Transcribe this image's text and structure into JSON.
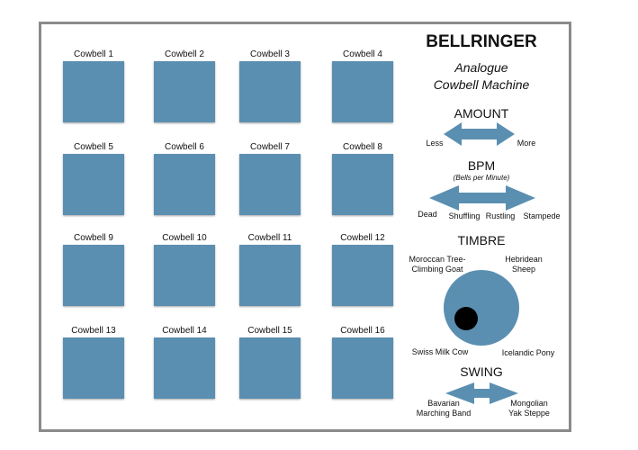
{
  "title": "BELLRINGER",
  "subtitle_line1": "Analogue",
  "subtitle_line2": "Cowbell Machine",
  "pads": [
    "Cowbell 1",
    "Cowbell 2",
    "Cowbell 3",
    "Cowbell 4",
    "Cowbell 5",
    "Cowbell 6",
    "Cowbell 7",
    "Cowbell 8",
    "Cowbell 9",
    "Cowbell 10",
    "Cowbell 11",
    "Cowbell 12",
    "Cowbell 13",
    "Cowbell 14",
    "Cowbell 15",
    "Cowbell 16"
  ],
  "amount": {
    "label": "AMOUNT",
    "min": "Less",
    "max": "More"
  },
  "bpm": {
    "label": "BPM",
    "sub": "(Bells per Minute)",
    "stops": [
      "Dead",
      "Shuffling",
      "Rustling",
      "Stampede"
    ]
  },
  "timbre": {
    "label": "TIMBRE",
    "top_left_1": "Moroccan Tree-",
    "top_left_2": "Climbing Goat",
    "top_right_1": "Hebridean",
    "top_right_2": "Sheep",
    "bottom_left": "Swiss Milk Cow",
    "bottom_right": "Icelandic Pony"
  },
  "swing": {
    "label": "SWING",
    "left_1": "Bavarian",
    "left_2": "Marching Band",
    "right_1": "Mongolian",
    "right_2": "Yak Steppe"
  },
  "colors": {
    "control": "#5b8fb1",
    "knob_indicator": "#000000",
    "frame": "#8a8a8a"
  }
}
